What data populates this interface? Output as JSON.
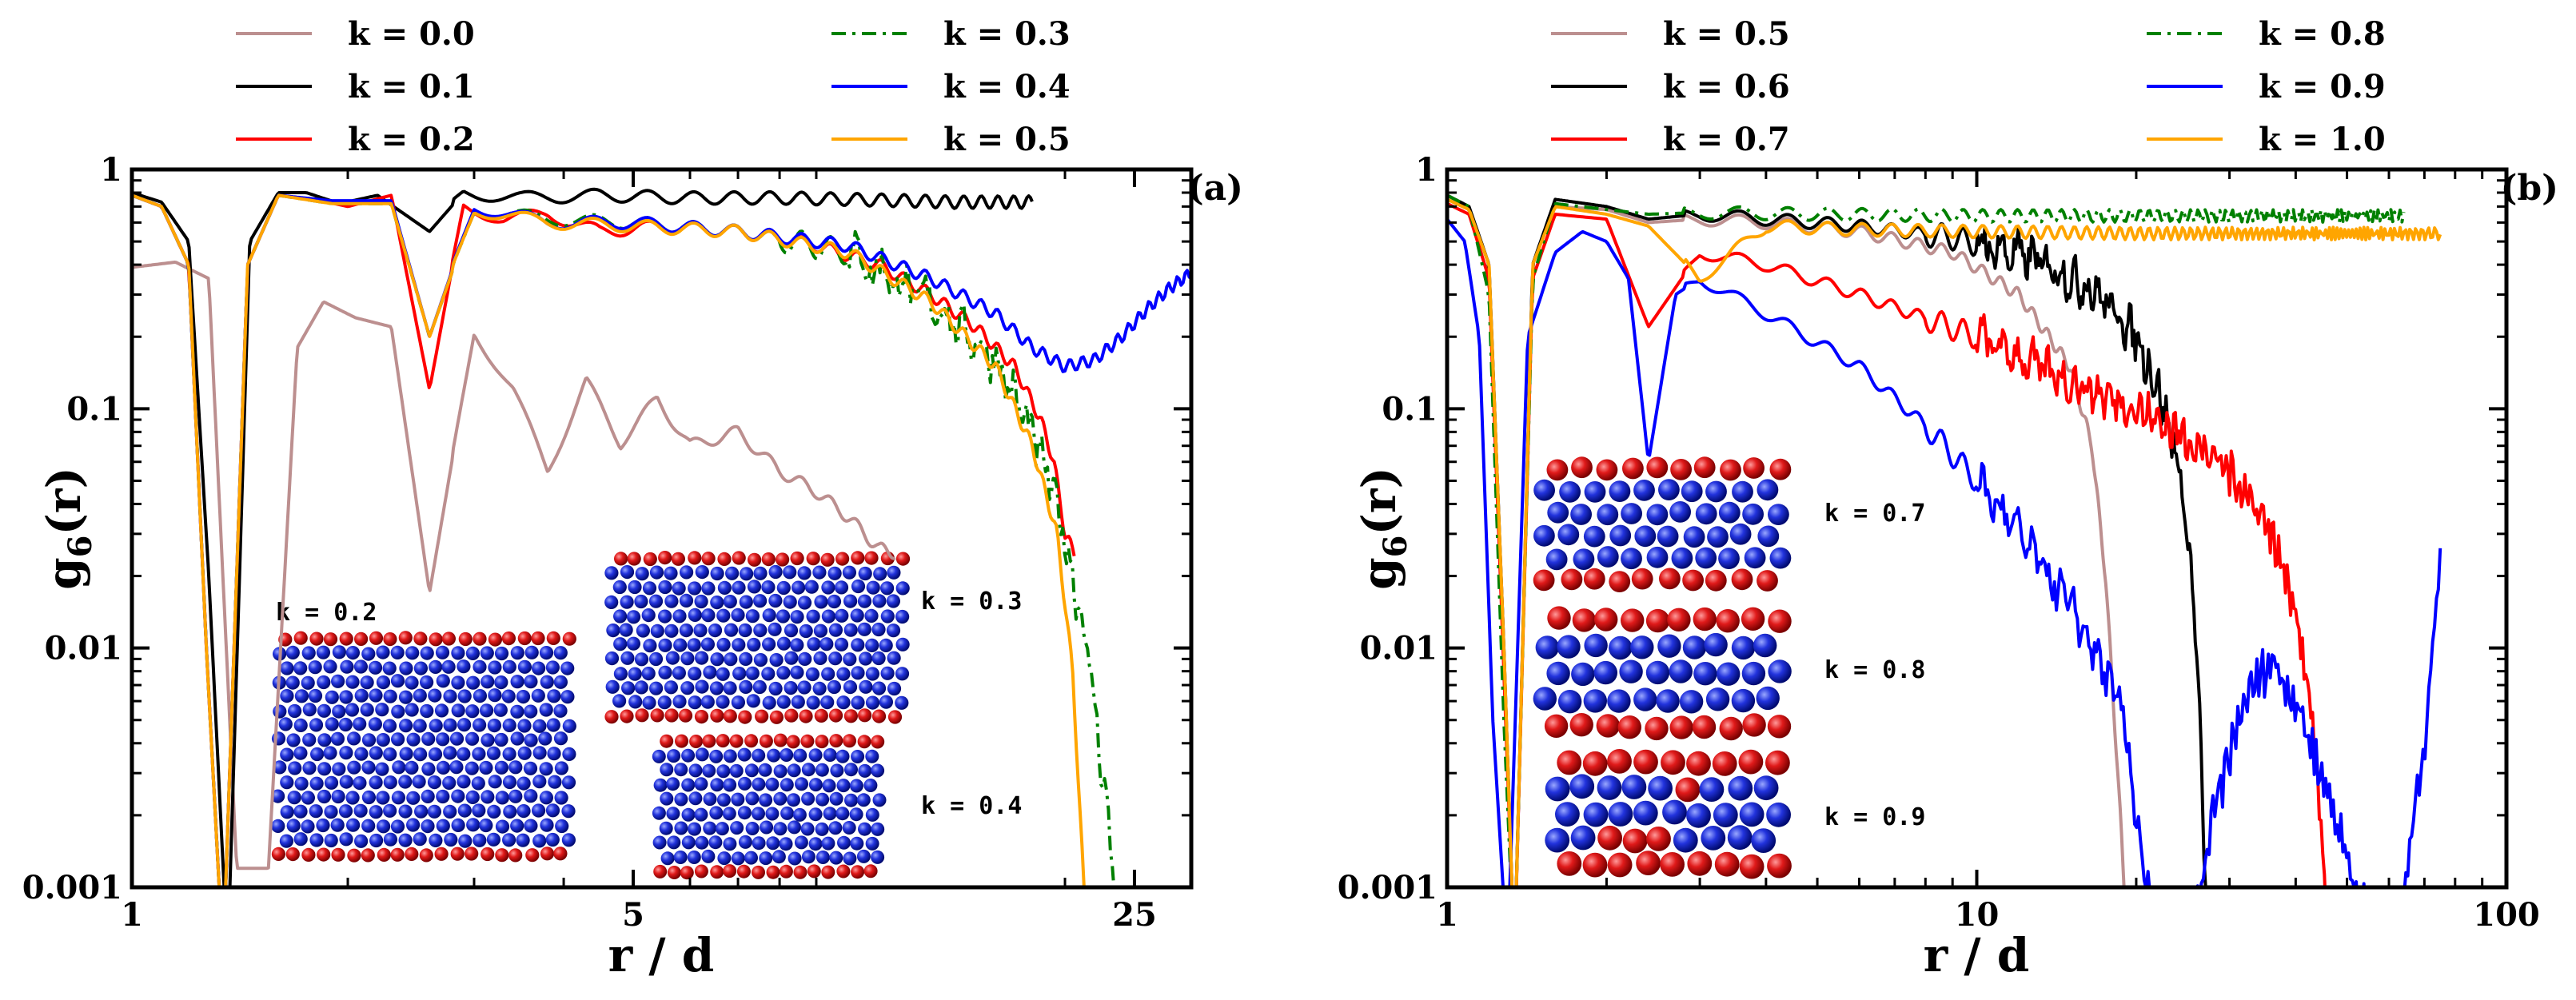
{
  "chart_data": [
    {
      "type": "line",
      "panel": "(a)",
      "xlabel": "r / d",
      "ylabel": "g6(r)",
      "ylabel_main": "g",
      "ylabel_sub": "6",
      "ylabel_tail": "(r)",
      "x_scale": "log",
      "y_scale": "log",
      "xlim": [
        1,
        30
      ],
      "ylim": [
        0.001,
        1
      ],
      "x_ticks": [
        {
          "value": 1,
          "label": "1"
        },
        {
          "value": 5,
          "label": "5"
        },
        {
          "value": 25,
          "label": "25"
        }
      ],
      "y_ticks": [
        {
          "value": 0.001,
          "label": "0.001"
        },
        {
          "value": 0.01,
          "label": "0.01"
        },
        {
          "value": 0.1,
          "label": "0.1"
        },
        {
          "value": 1,
          "label": "1"
        }
      ],
      "legend_position": "top",
      "series": [
        {
          "name": "k = 0.0",
          "color": "#bc8f8f",
          "style": "solid",
          "x": [
            1.0,
            1.15,
            1.28,
            1.4,
            1.55,
            1.7,
            1.85,
            2.05,
            2.3,
            2.6,
            3.0,
            3.4,
            3.8,
            4.3,
            4.8,
            5.4,
            6.0,
            7.0,
            8.0,
            9.0,
            10.0,
            11.0,
            11.6
          ],
          "y": [
            0.39,
            0.41,
            0.35,
            0.0012,
            0.0012,
            0.18,
            0.28,
            0.24,
            0.22,
            0.017,
            0.21,
            0.12,
            0.055,
            0.13,
            0.072,
            0.11,
            0.07,
            0.08,
            0.055,
            0.045,
            0.035,
            0.026,
            0.025
          ]
        },
        {
          "name": "k = 0.1",
          "color": "#000000",
          "style": "solid",
          "x": [
            1.0,
            1.1,
            1.2,
            1.28,
            1.36,
            1.46,
            1.6,
            1.75,
            1.95,
            2.2,
            2.6,
            2.9,
            3.5,
            4.5,
            6.0,
            8.0,
            10.0,
            12.0,
            14.0,
            16.0,
            18.0
          ],
          "y": [
            0.8,
            0.73,
            0.5,
            0.02,
            0.0005,
            0.5,
            0.8,
            0.8,
            0.72,
            0.78,
            0.55,
            0.8,
            0.76,
            0.78,
            0.76,
            0.76,
            0.75,
            0.74,
            0.73,
            0.73,
            0.73
          ]
        },
        {
          "name": "k = 0.2",
          "color": "#ff0000",
          "style": "solid",
          "x": [
            1.0,
            1.1,
            1.2,
            1.27,
            1.34,
            1.45,
            1.6,
            1.8,
            2.0,
            2.3,
            2.6,
            2.9,
            3.3,
            3.8,
            4.5,
            5.5,
            7.0,
            9.0,
            11.0,
            13.0,
            15.0,
            17.0,
            18.5,
            19.3,
            20.0,
            20.6
          ],
          "y": [
            0.78,
            0.7,
            0.4,
            0.01,
            0.0005,
            0.4,
            0.78,
            0.75,
            0.7,
            0.78,
            0.12,
            0.7,
            0.62,
            0.65,
            0.55,
            0.58,
            0.55,
            0.48,
            0.4,
            0.3,
            0.22,
            0.15,
            0.09,
            0.06,
            0.03,
            0.025
          ]
        },
        {
          "name": "k = 0.3",
          "color": "#008000",
          "style": "dashdot",
          "x": [
            1.0,
            1.1,
            1.2,
            1.27,
            1.34,
            1.45,
            1.6,
            1.9,
            2.3,
            2.6,
            3.0,
            3.8,
            5.0,
            7.0,
            10.0,
            13.0,
            16.0,
            18.0,
            19.5,
            20.5,
            21.5,
            22.3,
            23.2,
            24.0
          ],
          "y": [
            0.78,
            0.7,
            0.4,
            0.01,
            0.0005,
            0.4,
            0.78,
            0.72,
            0.72,
            0.2,
            0.68,
            0.62,
            0.6,
            0.55,
            0.45,
            0.28,
            0.16,
            0.08,
            0.04,
            0.02,
            0.01,
            0.004,
            0.0015,
            0.0005
          ]
        },
        {
          "name": "k = 0.4",
          "color": "#0000ff",
          "style": "solid",
          "x": [
            1.0,
            1.1,
            1.2,
            1.27,
            1.34,
            1.45,
            1.6,
            1.9,
            2.3,
            2.6,
            3.0,
            3.8,
            5.0,
            7.0,
            10.0,
            13.0,
            16.0,
            18.0,
            20.0,
            22.0,
            24.0,
            26.0,
            28.0,
            30.0
          ],
          "y": [
            0.78,
            0.7,
            0.4,
            0.01,
            0.0005,
            0.4,
            0.78,
            0.74,
            0.74,
            0.2,
            0.7,
            0.6,
            0.6,
            0.55,
            0.48,
            0.35,
            0.25,
            0.18,
            0.15,
            0.16,
            0.2,
            0.26,
            0.32,
            0.37
          ]
        },
        {
          "name": "k = 0.5",
          "color": "#ffa500",
          "style": "solid",
          "x": [
            1.0,
            1.1,
            1.2,
            1.27,
            1.34,
            1.45,
            1.6,
            1.9,
            2.3,
            2.6,
            3.0,
            3.8,
            5.0,
            7.0,
            10.0,
            13.0,
            16.0,
            18.0,
            19.5,
            20.5,
            21.0,
            21.5
          ],
          "y": [
            0.78,
            0.7,
            0.4,
            0.01,
            0.0005,
            0.4,
            0.78,
            0.72,
            0.72,
            0.2,
            0.68,
            0.6,
            0.58,
            0.55,
            0.45,
            0.28,
            0.15,
            0.07,
            0.03,
            0.008,
            0.002,
            0.0005
          ]
        }
      ],
      "insets": [
        {
          "label": "k = 0.2",
          "balls_red": "edges",
          "balls_blue": "interior"
        },
        {
          "label": "k = 0.3",
          "balls_red": "edges",
          "balls_blue": "interior"
        },
        {
          "label": "k = 0.4",
          "balls_red": "edges",
          "balls_blue": "interior"
        }
      ]
    },
    {
      "type": "line",
      "panel": "(b)",
      "xlabel": "r / d",
      "ylabel": "g6(r)",
      "ylabel_main": "g",
      "ylabel_sub": "6",
      "ylabel_tail": "(r)",
      "x_scale": "log",
      "y_scale": "log",
      "xlim": [
        1,
        100
      ],
      "ylim": [
        0.001,
        1
      ],
      "x_ticks": [
        {
          "value": 1,
          "label": "1"
        },
        {
          "value": 10,
          "label": "10"
        },
        {
          "value": 100,
          "label": "100"
        }
      ],
      "y_ticks": [
        {
          "value": 0.001,
          "label": "0.001"
        },
        {
          "value": 0.01,
          "label": "0.01"
        },
        {
          "value": 0.1,
          "label": "0.1"
        },
        {
          "value": 1,
          "label": "1"
        }
      ],
      "legend_position": "top",
      "series": [
        {
          "name": "k = 0.5",
          "color": "#bc8f8f",
          "style": "solid",
          "x": [
            1.0,
            1.1,
            1.2,
            1.28,
            1.34,
            1.45,
            1.6,
            2.0,
            2.4,
            3.0,
            4.0,
            6.0,
            9.0,
            12.0,
            15.0,
            16.5,
            17.5,
            18.2,
            18.8,
            19.3
          ],
          "y": [
            0.75,
            0.68,
            0.4,
            0.01,
            0.0005,
            0.4,
            0.7,
            0.68,
            0.6,
            0.62,
            0.6,
            0.55,
            0.45,
            0.3,
            0.15,
            0.07,
            0.02,
            0.005,
            0.0015,
            0.0005
          ]
        },
        {
          "name": "k = 0.6",
          "color": "#000000",
          "style": "solid",
          "x": [
            1.0,
            1.1,
            1.2,
            1.28,
            1.34,
            1.45,
            1.6,
            2.0,
            2.4,
            3.0,
            4.0,
            6.0,
            9.0,
            13.0,
            17.0,
            20.0,
            22.0,
            24.0,
            25.5,
            26.5,
            27.2
          ],
          "y": [
            0.78,
            0.7,
            0.4,
            0.01,
            0.0005,
            0.4,
            0.75,
            0.7,
            0.62,
            0.65,
            0.62,
            0.58,
            0.52,
            0.42,
            0.3,
            0.2,
            0.12,
            0.06,
            0.02,
            0.004,
            0.0005
          ]
        },
        {
          "name": "k = 0.7",
          "color": "#ff0000",
          "style": "solid",
          "x": [
            1.0,
            1.1,
            1.2,
            1.28,
            1.34,
            1.45,
            1.6,
            2.0,
            2.4,
            3.0,
            4.0,
            6.0,
            10.0,
            15.0,
            20.0,
            25.0,
            30.0,
            35.0,
            40.0,
            43.0,
            45.0,
            46.0
          ],
          "y": [
            0.72,
            0.65,
            0.35,
            0.008,
            0.0005,
            0.35,
            0.65,
            0.62,
            0.22,
            0.45,
            0.4,
            0.3,
            0.2,
            0.13,
            0.1,
            0.075,
            0.055,
            0.035,
            0.015,
            0.005,
            0.0015,
            0.0005
          ]
        },
        {
          "name": "k = 0.8",
          "color": "#008000",
          "style": "dashdot",
          "x": [
            1.0,
            1.1,
            1.2,
            1.28,
            1.34,
            1.45,
            1.6,
            2.0,
            2.4,
            3.0,
            5.0,
            10.0,
            20.0,
            40.0,
            64.0
          ],
          "y": [
            0.78,
            0.7,
            0.3,
            0.005,
            0.0005,
            0.35,
            0.72,
            0.68,
            0.65,
            0.66,
            0.65,
            0.64,
            0.64,
            0.64,
            0.64
          ]
        },
        {
          "name": "k = 0.9",
          "color": "#0000ff",
          "style": "solid",
          "x": [
            1.0,
            1.08,
            1.15,
            1.22,
            1.3,
            1.42,
            1.6,
            1.8,
            2.0,
            2.2,
            2.4,
            2.7,
            3.0,
            4.0,
            6.0,
            8.0,
            10.0,
            12.0,
            15.0,
            17.0,
            19.0,
            20.0,
            22.0,
            25.0,
            28.0,
            32.0,
            36.0,
            40.0,
            46.0,
            52.0,
            58.0,
            64.0,
            70.0,
            75.0
          ],
          "y": [
            0.62,
            0.5,
            0.2,
            0.005,
            0.0005,
            0.2,
            0.45,
            0.55,
            0.5,
            0.35,
            0.06,
            0.3,
            0.35,
            0.25,
            0.15,
            0.085,
            0.05,
            0.03,
            0.015,
            0.009,
            0.005,
            0.002,
            0.0005,
            0.0005,
            0.002,
            0.006,
            0.009,
            0.006,
            0.0025,
            0.001,
            0.0005,
            0.001,
            0.004,
            0.024
          ]
        },
        {
          "name": "k = 1.0",
          "color": "#ffa500",
          "style": "solid",
          "x": [
            1.0,
            1.1,
            1.2,
            1.28,
            1.34,
            1.45,
            1.6,
            2.0,
            2.4,
            3.0,
            4.0,
            6.0,
            10.0,
            20.0,
            40.0,
            75.0
          ],
          "y": [
            0.75,
            0.68,
            0.4,
            0.01,
            0.0005,
            0.4,
            0.7,
            0.65,
            0.58,
            0.35,
            0.58,
            0.56,
            0.55,
            0.54,
            0.54,
            0.54
          ]
        }
      ],
      "insets": [
        {
          "label": "k = 0.7",
          "balls_red": "edges",
          "balls_blue": "interior"
        },
        {
          "label": "k = 0.8",
          "balls_red": "edges",
          "balls_blue": "interior"
        },
        {
          "label": "k = 0.9",
          "balls_red": "edges",
          "balls_blue": "interior"
        }
      ]
    }
  ]
}
